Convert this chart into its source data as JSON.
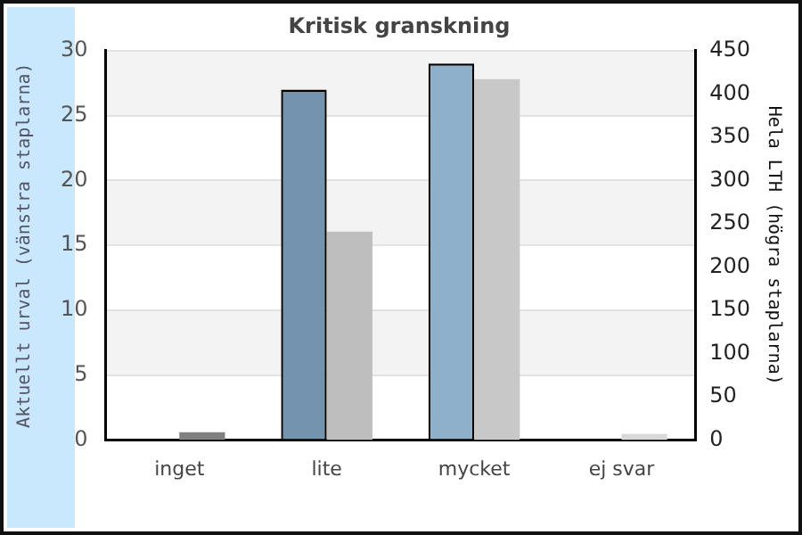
{
  "chart_data": {
    "type": "bar",
    "title": "Kritisk granskning",
    "ylabel": "Aktuellt urval (vänstra staplarna)",
    "y2label": "Hela LTH (högra staplarna)",
    "categories": [
      "inget",
      "lite",
      "mycket",
      "ej svar"
    ],
    "series": [
      {
        "colors": [
          "#7393ae",
          "#7393ae",
          "#8eb0cb",
          "#8eb0cb"
        ],
        "values": [
          0,
          27,
          29,
          0
        ]
      },
      {
        "axis": "y2",
        "colors": [
          "#808080",
          "#bebebe",
          "#c8c8c8",
          "#d8d8d8"
        ],
        "values": [
          9,
          241,
          417,
          7
        ]
      }
    ],
    "ylim": [
      0,
      30
    ],
    "yticks": [
      0,
      5,
      10,
      15,
      20,
      25,
      30
    ],
    "y2lim": [
      0,
      450
    ],
    "y2ticks": [
      0,
      50,
      100,
      150,
      200,
      250,
      300,
      350,
      400,
      450
    ],
    "grid": "y",
    "legend": false
  }
}
